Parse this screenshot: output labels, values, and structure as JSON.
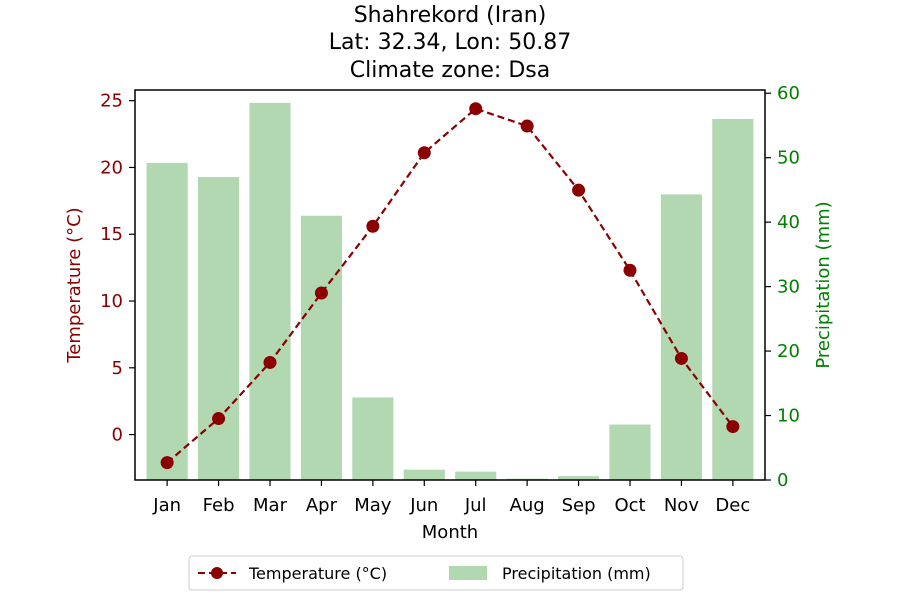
{
  "chart_data": {
    "type": "bar+line",
    "title_lines": [
      "Shahrekord (Iran)",
      "Lat: 32.34, Lon: 50.87",
      "Climate zone: Dsa"
    ],
    "categories": [
      "Jan",
      "Feb",
      "Mar",
      "Apr",
      "May",
      "Jun",
      "Jul",
      "Aug",
      "Sep",
      "Oct",
      "Nov",
      "Dec"
    ],
    "xlabel": "Month",
    "y_left": {
      "label": "Temperature (°C)",
      "ylim": [
        -3.4,
        25.8
      ],
      "ticks": [
        0,
        5,
        10,
        15,
        20,
        25
      ],
      "color": "#8b0000"
    },
    "y_right": {
      "label": "Precipitation (mm)",
      "ylim": [
        0,
        60.5
      ],
      "ticks": [
        0,
        10,
        20,
        30,
        40,
        50,
        60
      ],
      "color": "#008000"
    },
    "series": [
      {
        "name": "Temperature (°C)",
        "kind": "line",
        "axis": "left",
        "style": "dashed",
        "marker": "circle",
        "color": "#8b0000",
        "values": [
          -2.1,
          1.2,
          5.4,
          10.6,
          15.6,
          21.1,
          24.4,
          23.1,
          18.3,
          12.3,
          5.7,
          0.6
        ]
      },
      {
        "name": "Precipitation (mm)",
        "kind": "bar",
        "axis": "right",
        "color": "#b2d8b2",
        "values": [
          49.2,
          47.0,
          58.5,
          41.0,
          12.8,
          1.6,
          1.3,
          0.2,
          0.6,
          8.6,
          44.3,
          56.0
        ]
      }
    ],
    "legend": {
      "placement": "bottom-center",
      "entries": [
        "Temperature (°C)",
        "Precipitation (mm)"
      ]
    },
    "grid": false
  }
}
